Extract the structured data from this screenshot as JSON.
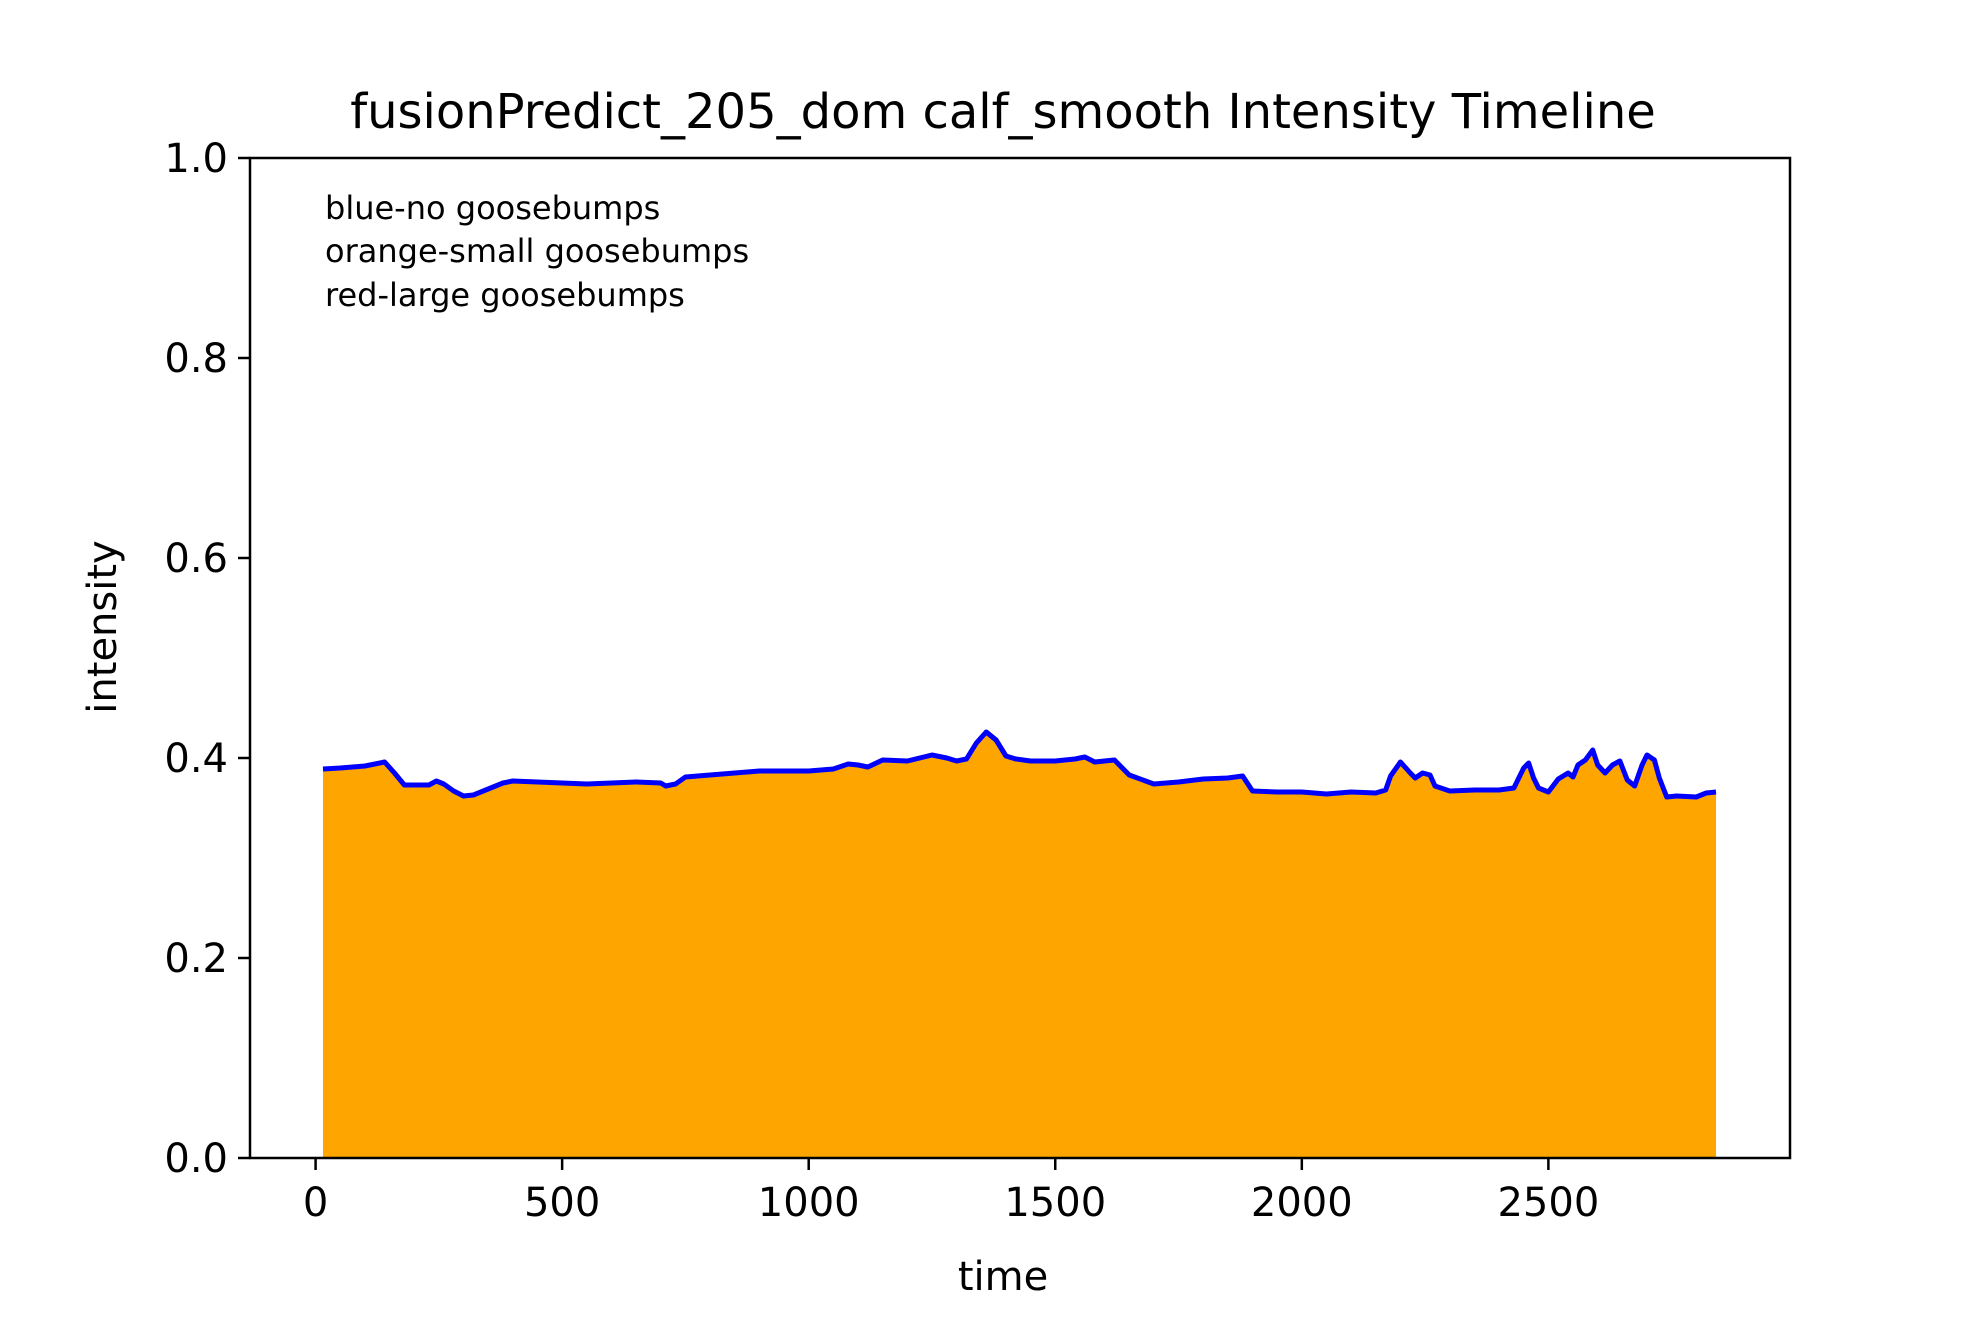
{
  "chart_data": {
    "type": "area",
    "title": "fusionPredict_205_dom calf_smooth Intensity Timeline",
    "xlabel": "time",
    "ylabel": "intensity",
    "xlim": [
      -133,
      2990
    ],
    "ylim": [
      0.0,
      1.0
    ],
    "xticks": [
      0,
      500,
      1000,
      1500,
      2000,
      2500
    ],
    "xtick_labels": [
      "0",
      "500",
      "1000",
      "1500",
      "2000",
      "2500"
    ],
    "yticks": [
      0.0,
      0.2,
      0.4,
      0.6,
      0.8,
      1.0
    ],
    "ytick_labels": [
      "0.0",
      "0.2",
      "0.4",
      "0.6",
      "0.8",
      "1.0"
    ],
    "grid": false,
    "annotations": [
      "blue-no goosebumps",
      "orange-small goosebumps",
      "red-large goosebumps"
    ],
    "line_color": "#0000ff",
    "fill_color": "#ffa500",
    "series": [
      {
        "x": [
          15,
          50,
          100,
          140,
          160,
          180,
          200,
          230,
          245,
          260,
          280,
          300,
          320,
          350,
          380,
          400,
          450,
          500,
          550,
          600,
          650,
          700,
          710,
          730,
          750,
          800,
          850,
          900,
          950,
          1000,
          1050,
          1080,
          1100,
          1120,
          1150,
          1200,
          1250,
          1280,
          1300,
          1320,
          1340,
          1360,
          1380,
          1400,
          1420,
          1450,
          1500,
          1540,
          1560,
          1580,
          1620,
          1650,
          1700,
          1750,
          1800,
          1850,
          1880,
          1900,
          1950,
          2000,
          2050,
          2100,
          2150,
          2170,
          2180,
          2200,
          2220,
          2230,
          2245,
          2260,
          2270,
          2300,
          2350,
          2400,
          2430,
          2450,
          2460,
          2470,
          2480,
          2500,
          2520,
          2540,
          2550,
          2560,
          2575,
          2590,
          2600,
          2615,
          2630,
          2645,
          2660,
          2675,
          2690,
          2700,
          2715,
          2725,
          2740,
          2760,
          2800,
          2820,
          2840
        ],
        "y": [
          0.389,
          0.39,
          0.392,
          0.396,
          0.385,
          0.373,
          0.373,
          0.373,
          0.377,
          0.374,
          0.367,
          0.362,
          0.363,
          0.369,
          0.375,
          0.377,
          0.376,
          0.375,
          0.374,
          0.375,
          0.376,
          0.375,
          0.372,
          0.374,
          0.381,
          0.383,
          0.385,
          0.387,
          0.387,
          0.387,
          0.389,
          0.394,
          0.393,
          0.391,
          0.398,
          0.397,
          0.403,
          0.4,
          0.397,
          0.399,
          0.415,
          0.426,
          0.418,
          0.402,
          0.399,
          0.397,
          0.397,
          0.399,
          0.401,
          0.396,
          0.398,
          0.383,
          0.374,
          0.376,
          0.379,
          0.38,
          0.382,
          0.367,
          0.366,
          0.366,
          0.364,
          0.366,
          0.365,
          0.368,
          0.382,
          0.396,
          0.385,
          0.38,
          0.385,
          0.383,
          0.372,
          0.367,
          0.368,
          0.368,
          0.37,
          0.39,
          0.395,
          0.38,
          0.37,
          0.366,
          0.379,
          0.385,
          0.381,
          0.393,
          0.398,
          0.408,
          0.393,
          0.385,
          0.393,
          0.397,
          0.378,
          0.372,
          0.393,
          0.403,
          0.398,
          0.38,
          0.361,
          0.362,
          0.361,
          0.365,
          0.366
        ]
      }
    ]
  }
}
